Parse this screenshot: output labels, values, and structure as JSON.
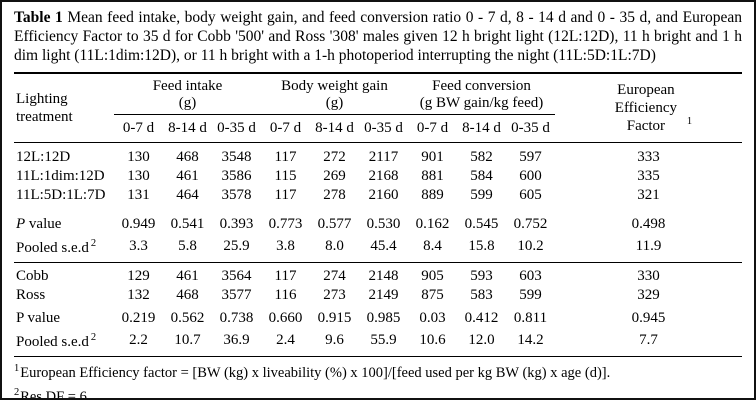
{
  "caption": {
    "label": "Table 1",
    "text": "Mean feed intake, body weight gain, and feed conversion ratio 0 - 7 d, 8 - 14 d and 0 - 35 d, and European Efficiency Factor to 35 d for Cobb '500' and Ross '308' males given 12 h bright light (12L:12D), 11 h bright and 1 h dim light (11L:1dim:12D), or 11 h bright with a 1-h photoperiod interrupting the night (11L:5D:1L:7D)"
  },
  "table": {
    "row_header": "Lighting treatment",
    "groups": [
      {
        "title": "Feed intake",
        "unit": "(g)"
      },
      {
        "title": "Body weight gain",
        "unit": "(g)"
      },
      {
        "title": "Feed conversion",
        "unit": "(g BW gain/kg feed)"
      }
    ],
    "eef_header": {
      "text": "European Efficiency Factor",
      "sup": "1"
    },
    "subheaders": [
      "0-7 d",
      "8-14 d",
      "0-35 d"
    ],
    "treatments": {
      "rows": [
        {
          "label": "12L:12D",
          "values": [
            "130",
            "468",
            "3548",
            "117",
            "272",
            "2117",
            "901",
            "582",
            "597",
            "333"
          ]
        },
        {
          "label": "11L:1dim:12D",
          "values": [
            "130",
            "461",
            "3586",
            "115",
            "269",
            "2168",
            "881",
            "584",
            "600",
            "335"
          ]
        },
        {
          "label": "11L:5D:1L:7D",
          "values": [
            "131",
            "464",
            "3578",
            "117",
            "278",
            "2160",
            "889",
            "599",
            "605",
            "321"
          ]
        }
      ],
      "p_row": {
        "label_italic": "P",
        "label": " value",
        "values": [
          "0.949",
          "0.541",
          "0.393",
          "0.773",
          "0.577",
          "0.530",
          "0.162",
          "0.545",
          "0.752",
          "0.498"
        ]
      },
      "sed_row": {
        "label": "Pooled s.e.d",
        "sup": "2",
        "values": [
          "3.3",
          "5.8",
          "25.9",
          "3.8",
          "8.0",
          "45.4",
          "8.4",
          "15.8",
          "10.2",
          "11.9"
        ]
      }
    },
    "breeds": {
      "rows": [
        {
          "label": "Cobb",
          "values": [
            "129",
            "461",
            "3564",
            "117",
            "274",
            "2148",
            "905",
            "593",
            "603",
            "330"
          ]
        },
        {
          "label": "Ross",
          "values": [
            "132",
            "468",
            "3577",
            "116",
            "273",
            "2149",
            "875",
            "583",
            "599",
            "329"
          ]
        }
      ],
      "p_row": {
        "label_italic": "",
        "label": "P value",
        "values": [
          "0.219",
          "0.562",
          "0.738",
          "0.660",
          "0.915",
          "0.985",
          "0.03",
          "0.412",
          "0.811",
          "0.945"
        ]
      },
      "sed_row": {
        "label": "Pooled s.e.d",
        "sup": "2",
        "values": [
          "2.2",
          "10.7",
          "36.9",
          "2.4",
          "9.6",
          "55.9",
          "10.6",
          "12.0",
          "14.2",
          "7.7"
        ]
      }
    }
  },
  "footnotes": [
    {
      "sup": "1",
      "text": "European Efficiency factor = [BW (kg) x liveability (%) x 100]/[feed used per kg BW (kg) x age (d)]."
    },
    {
      "sup": "2",
      "text": "Res DF = 6."
    }
  ],
  "colors": {
    "text": "#000000",
    "background": "#ffffff",
    "rule": "#000000"
  }
}
